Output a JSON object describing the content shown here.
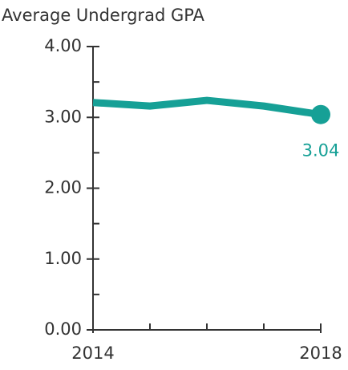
{
  "chart_data": {
    "type": "line",
    "title": "Average Undergrad GPA",
    "x": [
      2014,
      2015,
      2016,
      2017,
      2018
    ],
    "series": [
      {
        "name": "Average Undergrad GPA",
        "color": "#16a096",
        "values": [
          3.21,
          3.16,
          3.24,
          3.16,
          3.04
        ]
      }
    ],
    "xlim": [
      2014,
      2018
    ],
    "xticks": [
      2014,
      2018
    ],
    "xminor_ticks": [
      2015,
      2016,
      2017
    ],
    "ylim": [
      0,
      4
    ],
    "yticks": [
      {
        "value": 0,
        "label": "0.00"
      },
      {
        "value": 1,
        "label": "1.00"
      },
      {
        "value": 2,
        "label": "2.00"
      },
      {
        "value": 3,
        "label": "3.00"
      },
      {
        "value": 4,
        "label": "4.00"
      }
    ],
    "yminor_ticks": [
      0.5,
      1.5,
      2.5,
      3.5
    ],
    "grid": false
  }
}
